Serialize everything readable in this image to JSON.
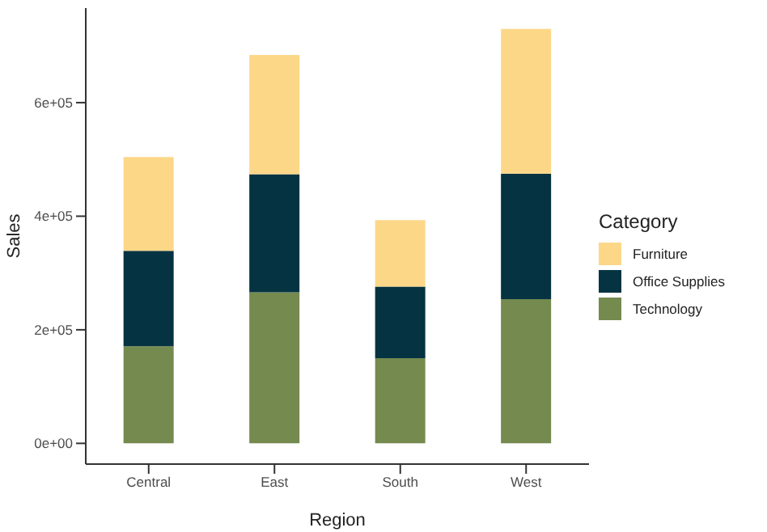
{
  "chart_data": {
    "type": "bar",
    "stacked": true,
    "xlabel": "Region",
    "ylabel": "Sales",
    "legend_title": "Category",
    "legend": "right",
    "categories": [
      "Central",
      "East",
      "South",
      "West"
    ],
    "series": [
      {
        "name": "Technology",
        "color": "#748a4f",
        "values": [
          171000,
          266000,
          150000,
          254000
        ]
      },
      {
        "name": "Office Supplies",
        "color": "#053342",
        "values": [
          168000,
          208000,
          126000,
          221000
        ]
      },
      {
        "name": "Furniture",
        "color": "#fcd788",
        "values": [
          165000,
          210000,
          117000,
          255000
        ]
      }
    ],
    "ylim": [
      -36500,
      766500
    ],
    "yticks": [
      {
        "value": 0,
        "label": "0e+00"
      },
      {
        "value": 200000,
        "label": "2e+05"
      },
      {
        "value": 400000,
        "label": "4e+05"
      },
      {
        "value": 600000,
        "label": "6e+05"
      }
    ],
    "grid": false
  }
}
